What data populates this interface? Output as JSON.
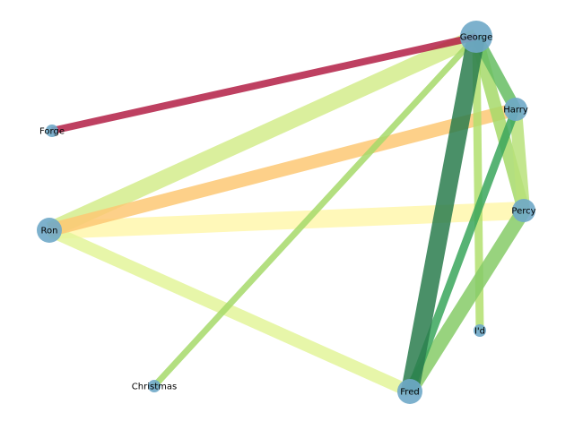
{
  "graph": {
    "nodes": [
      {
        "id": "George",
        "label": "George",
        "size": 18
      },
      {
        "id": "Harry",
        "label": "Harry",
        "size": 13
      },
      {
        "id": "Forge",
        "label": "Forge",
        "size": 7
      },
      {
        "id": "Ron",
        "label": "Ron",
        "size": 14
      },
      {
        "id": "Percy",
        "label": "Percy",
        "size": 13
      },
      {
        "id": "I'd",
        "label": "I'd",
        "size": 7
      },
      {
        "id": "Christmas",
        "label": "Christmas",
        "size": 7
      },
      {
        "id": "Fred",
        "label": "Fred",
        "size": 14
      }
    ],
    "edges": [
      {
        "source": "Ron",
        "target": "Percy",
        "weight": 20,
        "color": "#fff7ad"
      },
      {
        "source": "Ron",
        "target": "Fred",
        "weight": 14,
        "color": "#e3f59a"
      },
      {
        "source": "Ron",
        "target": "George",
        "weight": 18,
        "color": "#d4ec8c"
      },
      {
        "source": "Ron",
        "target": "Harry",
        "weight": 15,
        "color": "#fdc874"
      },
      {
        "source": "George",
        "target": "Christmas",
        "weight": 7,
        "color": "#a6d96a"
      },
      {
        "source": "George",
        "target": "I'd",
        "weight": 9,
        "color": "#b2df6e"
      },
      {
        "source": "George",
        "target": "Percy",
        "weight": 14,
        "color": "#a6d96a"
      },
      {
        "source": "Harry",
        "target": "Percy",
        "weight": 14,
        "color": "#b8e27a"
      },
      {
        "source": "Percy",
        "target": "Fred",
        "weight": 16,
        "color": "#86cb67"
      },
      {
        "source": "Harry",
        "target": "Fred",
        "weight": 9,
        "color": "#3aa65c"
      },
      {
        "source": "George",
        "target": "Harry",
        "weight": 13,
        "color": "#66bd63"
      },
      {
        "source": "George",
        "target": "Fred",
        "weight": 20,
        "color": "#2a7d4e"
      },
      {
        "source": "Forge",
        "target": "George",
        "weight": 8,
        "color": "#b31f45"
      }
    ],
    "node_color": "#6fa8c8"
  }
}
